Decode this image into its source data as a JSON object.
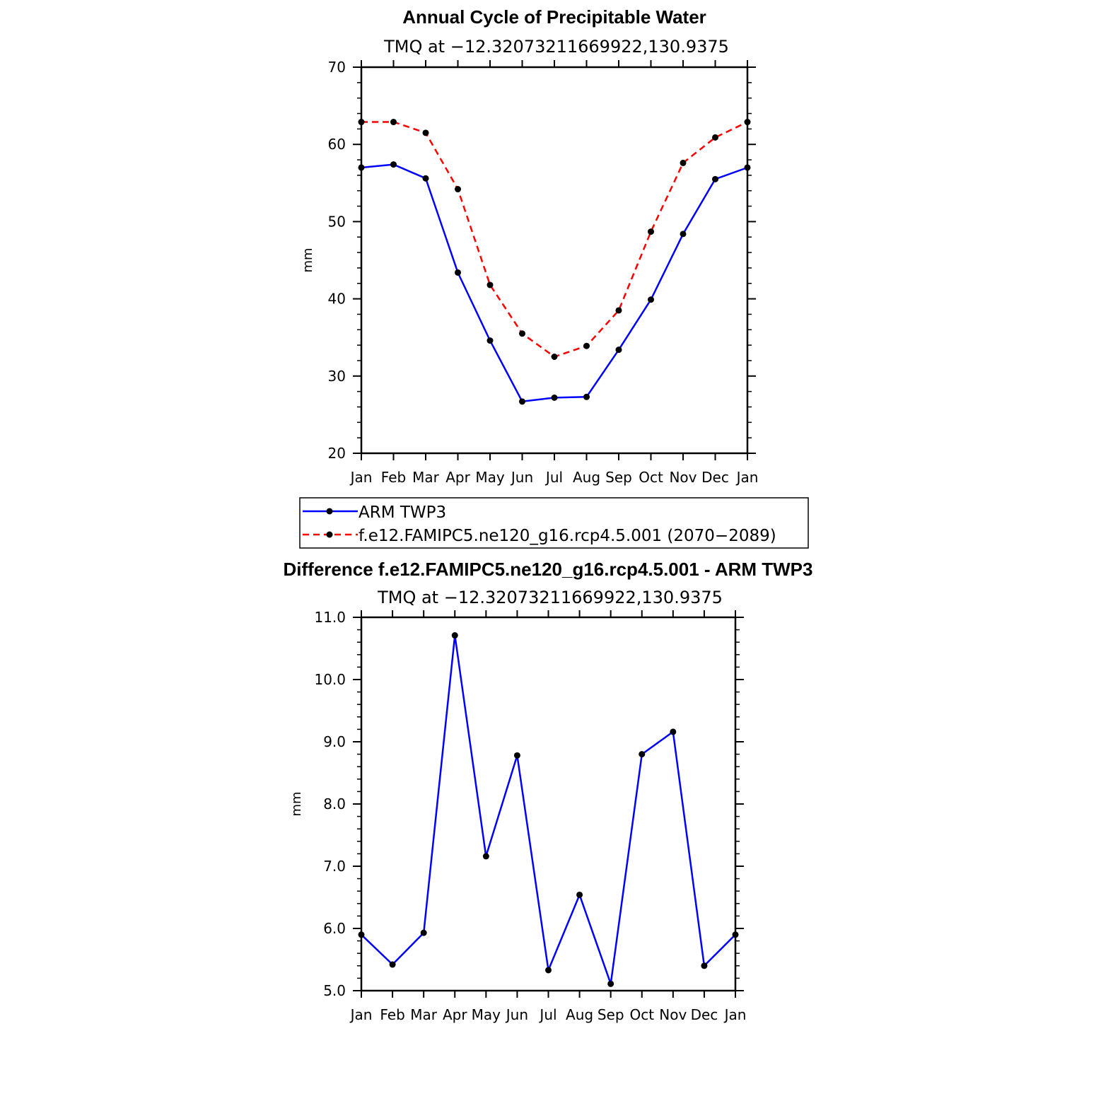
{
  "colors": {
    "obs": "#0000ff",
    "model": "#ff0000",
    "axis": "#000000",
    "marker": "#000000"
  },
  "chart_data": [
    {
      "type": "line",
      "title": "Annual Cycle of Precipitable Water",
      "subtitle": "TMQ at −12.32073211669922,130.9375",
      "ylabel": "mm",
      "ylim": [
        20,
        70
      ],
      "yticks": [
        20,
        30,
        40,
        50,
        60,
        70
      ],
      "yticklabels": [
        "20",
        "30",
        "40",
        "50",
        "60",
        "70"
      ],
      "categories": [
        "Jan",
        "Feb",
        "Mar",
        "Apr",
        "May",
        "Jun",
        "Jul",
        "Aug",
        "Sep",
        "Oct",
        "Nov",
        "Dec",
        "Jan"
      ],
      "series": [
        {
          "name": "ARM TWP3",
          "style": "solid",
          "color": "#0000ff",
          "values": [
            57.0,
            57.4,
            55.6,
            43.4,
            34.6,
            26.7,
            27.2,
            27.3,
            33.4,
            39.9,
            48.4,
            55.5,
            57.0
          ]
        },
        {
          "name": "f.e12.FAMIPC5.ne120_g16.rcp4.5.001 (2070−2089)",
          "style": "dashed",
          "color": "#ff0000",
          "values": [
            62.9,
            62.9,
            61.5,
            54.2,
            41.8,
            35.5,
            32.5,
            33.9,
            38.5,
            48.7,
            57.6,
            60.9,
            62.9
          ]
        }
      ],
      "legend": "below"
    },
    {
      "type": "line",
      "title": "Difference f.e12.FAMIPC5.ne120_g16.rcp4.5.001 - ARM TWP3",
      "subtitle": "TMQ at −12.32073211669922,130.9375",
      "ylabel": "mm",
      "ylim": [
        5.0,
        11.0
      ],
      "yticks": [
        5,
        6,
        7,
        8,
        9,
        10,
        11
      ],
      "yticklabels": [
        "5.0",
        "6.0",
        "7.0",
        "8.0",
        "9.0",
        "10.0",
        "11.0"
      ],
      "categories": [
        "Jan",
        "Feb",
        "Mar",
        "Apr",
        "May",
        "Jun",
        "Jul",
        "Aug",
        "Sep",
        "Oct",
        "Nov",
        "Dec",
        "Jan"
      ],
      "series": [
        {
          "style": "solid",
          "color": "#0000ff",
          "values": [
            5.9,
            5.42,
            5.93,
            10.71,
            7.16,
            8.78,
            5.33,
            6.54,
            5.11,
            8.8,
            9.16,
            5.4,
            5.9
          ]
        }
      ]
    }
  ]
}
